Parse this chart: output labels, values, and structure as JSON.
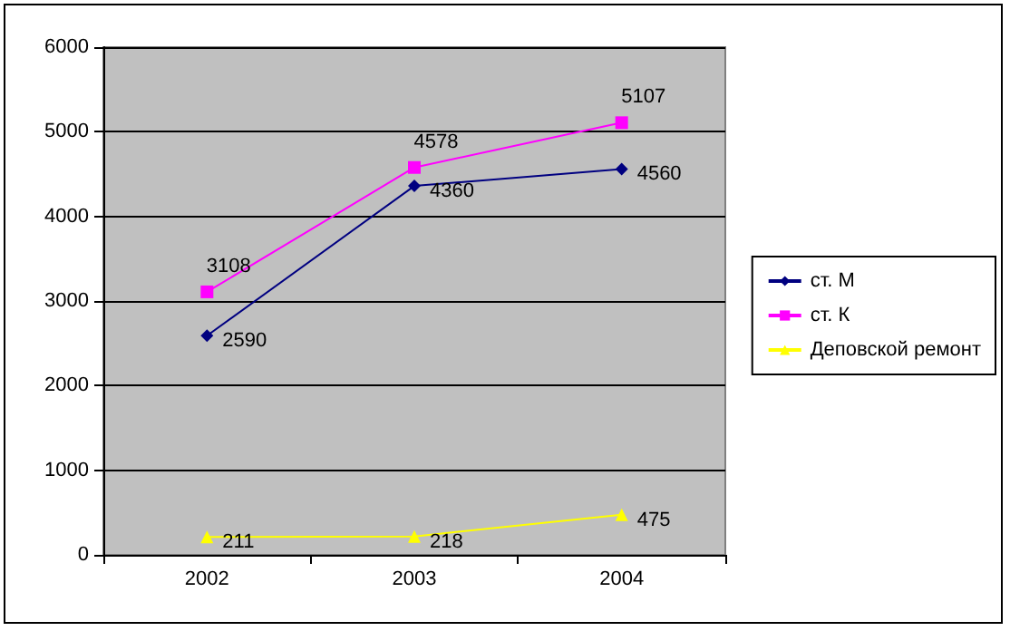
{
  "chart_data": {
    "type": "line",
    "categories": [
      "2002",
      "2003",
      "2004"
    ],
    "series": [
      {
        "name": "ст. М",
        "color": "#000080",
        "marker": "diamond",
        "values": [
          2590,
          4360,
          4560
        ]
      },
      {
        "name": "ст. К",
        "color": "#ff00ff",
        "marker": "square",
        "values": [
          3108,
          4578,
          5107
        ]
      },
      {
        "name": "Деповской ремонт",
        "color": "#ffff00",
        "marker": "triangle",
        "values": [
          211,
          218,
          475
        ]
      }
    ],
    "ylim": [
      0,
      6000
    ],
    "yticks": [
      0,
      1000,
      2000,
      3000,
      4000,
      5000,
      6000
    ],
    "grid": "y",
    "legend": "right",
    "data_labels": true
  }
}
